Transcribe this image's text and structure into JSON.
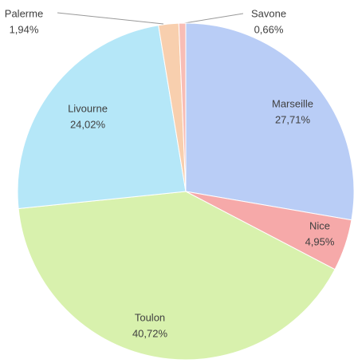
{
  "chart_data": {
    "type": "pie",
    "categories": [
      "Marseille",
      "Nice",
      "Toulon",
      "Livourne",
      "Palerme",
      "Savone"
    ],
    "values": [
      27.71,
      4.95,
      40.72,
      24.02,
      1.94,
      0.66
    ],
    "value_labels": [
      "27,71%",
      "4,95%",
      "40,72%",
      "24,02%",
      "1,94%",
      "0,66%"
    ],
    "colors": [
      "#b9cdf6",
      "#f6a9a9",
      "#d8f1ad",
      "#b5e7f8",
      "#f8cfae",
      "#f8bdb5"
    ]
  }
}
